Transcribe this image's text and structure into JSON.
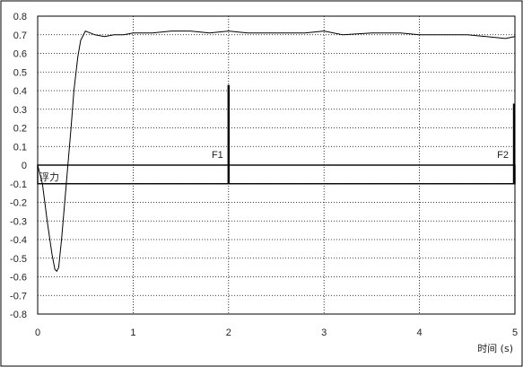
{
  "chart_data": {
    "type": "line",
    "xlabel": "时间 (s)",
    "ylabel": "",
    "xlim": [
      0,
      5
    ],
    "ylim": [
      -0.8,
      0.8
    ],
    "x_ticks": [
      0,
      1,
      2,
      3,
      4,
      5
    ],
    "y_ticks": [
      0.8,
      0.7,
      0.6,
      0.5,
      0.4,
      0.3,
      0.2,
      0.1,
      0,
      -0.1,
      -0.2,
      -0.3,
      -0.4,
      -0.5,
      -0.6,
      -0.7,
      -0.8
    ],
    "grid": true,
    "series": [
      {
        "name": "浮力",
        "x": [
          0,
          0.05,
          0.1,
          0.15,
          0.18,
          0.2,
          0.22,
          0.25,
          0.3,
          0.35,
          0.38,
          0.42,
          0.45,
          0.5,
          0.55,
          0.6,
          0.7,
          0.8,
          0.9,
          1.0,
          1.2,
          1.4,
          1.6,
          1.8,
          2.0,
          2.2,
          2.5,
          2.8,
          3.0,
          3.2,
          3.5,
          3.8,
          4.0,
          4.2,
          4.5,
          4.7,
          4.9,
          5.0
        ],
        "y": [
          0,
          -0.1,
          -0.3,
          -0.48,
          -0.56,
          -0.57,
          -0.55,
          -0.4,
          -0.1,
          0.2,
          0.4,
          0.58,
          0.67,
          0.72,
          0.71,
          0.7,
          0.69,
          0.7,
          0.7,
          0.71,
          0.71,
          0.72,
          0.72,
          0.71,
          0.72,
          0.71,
          0.71,
          0.71,
          0.72,
          0.7,
          0.71,
          0.71,
          0.7,
          0.7,
          0.7,
          0.69,
          0.68,
          0.69
        ]
      }
    ],
    "box": {
      "x": [
        0,
        5
      ],
      "y": [
        -0.1,
        0
      ]
    },
    "markers": [
      {
        "label": "F1",
        "x": 2,
        "y_from": -0.1,
        "y_to": 0.43
      },
      {
        "label": "F2",
        "x": 5,
        "y_from": -0.1,
        "y_to": 0.33
      }
    ],
    "colors": {
      "line": "#000000",
      "grid": "#000000",
      "frame": "#000000"
    }
  }
}
